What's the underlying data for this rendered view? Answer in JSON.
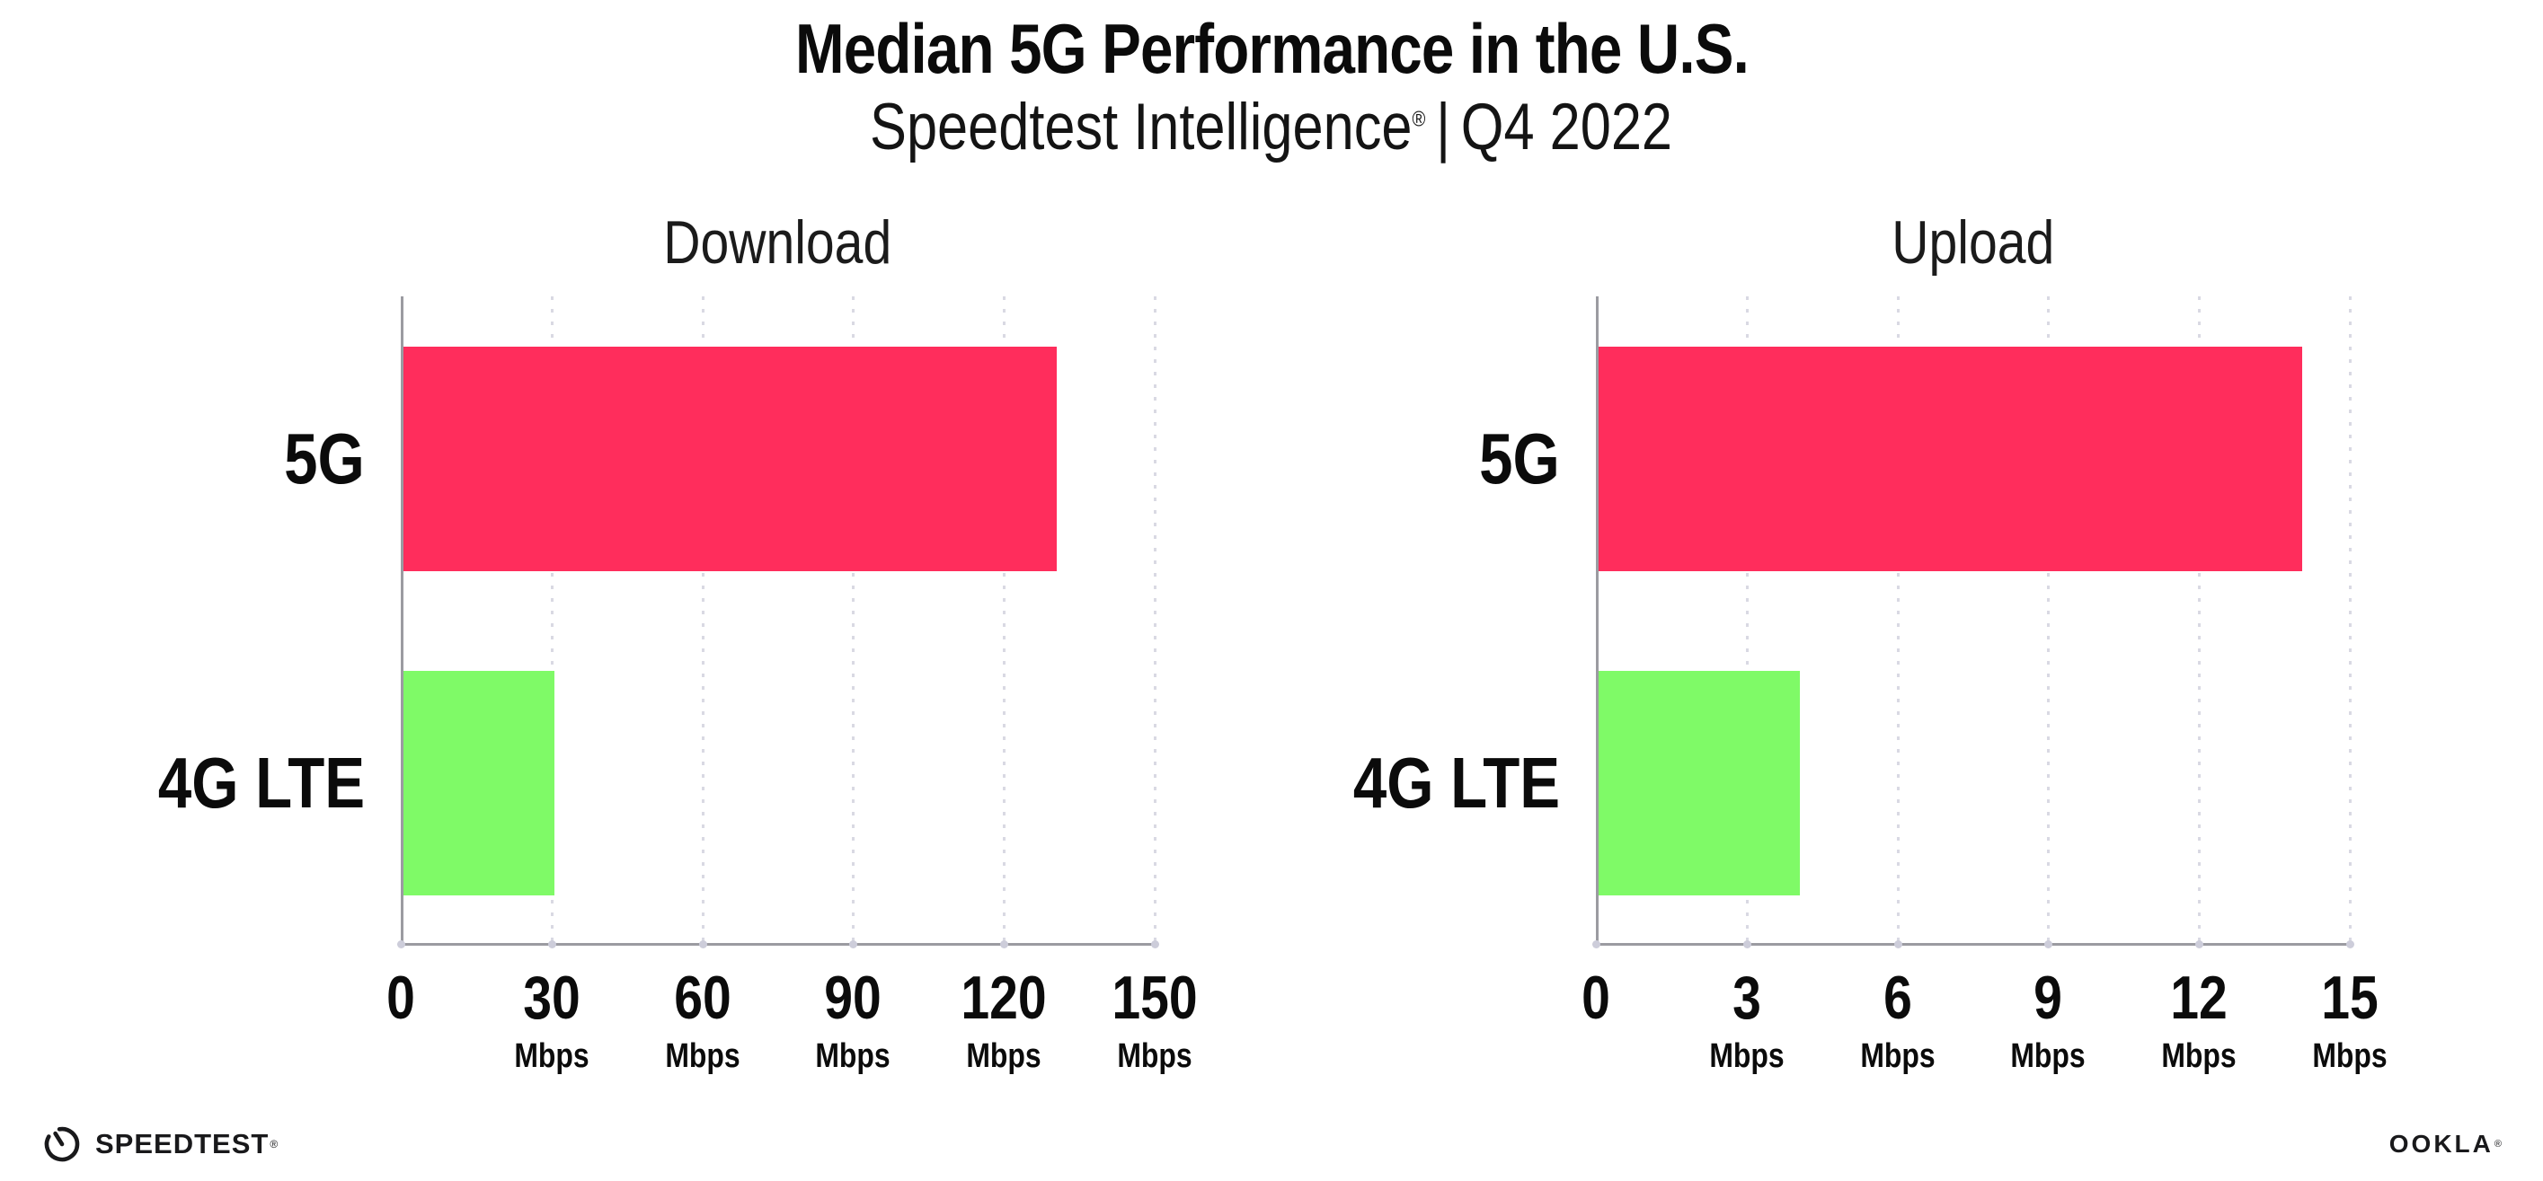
{
  "title": "Median 5G Performance in the U.S.",
  "subtitle": {
    "product": "Speedtest Intelligence",
    "reg_mark": "®",
    "divider": "|",
    "period": "Q4 2022"
  },
  "chart_data": [
    {
      "type": "bar",
      "orientation": "horizontal",
      "title": "Download",
      "categories": [
        "5G",
        "4G LTE"
      ],
      "values": [
        130,
        30
      ],
      "unit": "Mbps",
      "xlim": [
        0,
        150
      ],
      "xticks": [
        0,
        30,
        60,
        90,
        120,
        150
      ],
      "tick_unit_label": "Mbps",
      "grid": "vertical dotted gridlines at labeled ticks",
      "legend": "none",
      "bar_colors": [
        "#ff2d5c",
        "#7ffa67"
      ]
    },
    {
      "type": "bar",
      "orientation": "horizontal",
      "title": "Upload",
      "categories": [
        "5G",
        "4G LTE"
      ],
      "values": [
        14,
        4
      ],
      "unit": "Mbps",
      "xlim": [
        0,
        15
      ],
      "xticks": [
        0,
        3,
        6,
        9,
        12,
        15
      ],
      "tick_unit_label": "Mbps",
      "grid": "vertical dotted gridlines at labeled ticks",
      "legend": "none",
      "bar_colors": [
        "#ff2d5c",
        "#7ffa67"
      ]
    }
  ],
  "colors": {
    "bar_5g": "#ff2d5c",
    "bar_4g_lte": "#7ffa67",
    "axis_line": "#9b9ba1",
    "gridline_dot": "#d9d9e3",
    "tick_dot": "#cdcdda",
    "text": "#0d0d0d",
    "background": "#ffffff"
  },
  "footer": {
    "speedtest_label": "SPEEDTEST",
    "speedtest_reg": "®",
    "ookla_label": "OOKLA",
    "ookla_reg": "®"
  }
}
